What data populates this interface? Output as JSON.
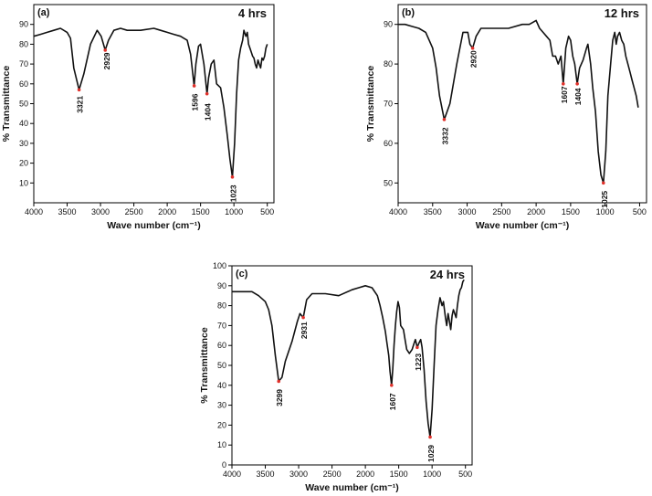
{
  "chart_data": [
    {
      "type": "line",
      "panel_label": "(a)",
      "title": "4 hrs",
      "xlabel": "Wave number (cm⁻¹)",
      "ylabel": "% Transmittance",
      "xlim": [
        4000,
        400
      ],
      "ylim": [
        0,
        100
      ],
      "xticks": [
        4000,
        3500,
        3000,
        2500,
        2000,
        1500,
        1000,
        500
      ],
      "yticks": [
        10,
        20,
        30,
        40,
        50,
        60,
        70,
        80,
        90
      ],
      "marker_color": "#e0302a",
      "annotations": [
        {
          "x": 3321,
          "y": 57,
          "label": "3321"
        },
        {
          "x": 2929,
          "y": 77,
          "label": "2929"
        },
        {
          "x": 1596,
          "y": 59,
          "label": "1596"
        },
        {
          "x": 1404,
          "y": 55,
          "label": "1404"
        },
        {
          "x": 1023,
          "y": 13,
          "label": "1023"
        }
      ],
      "series": [
        {
          "name": "4 hrs",
          "x": [
            4000,
            3900,
            3800,
            3700,
            3600,
            3500,
            3450,
            3400,
            3321,
            3250,
            3150,
            3050,
            2990,
            2929,
            2880,
            2800,
            2700,
            2600,
            2400,
            2200,
            2100,
            2000,
            1900,
            1800,
            1750,
            1700,
            1650,
            1620,
            1596,
            1570,
            1530,
            1500,
            1450,
            1404,
            1380,
            1340,
            1300,
            1260,
            1200,
            1150,
            1100,
            1060,
            1023,
            990,
            960,
            930,
            900,
            870,
            850,
            820,
            800,
            780,
            760,
            740,
            720,
            700,
            680,
            660,
            640,
            620,
            600,
            580,
            560,
            540,
            520,
            500
          ],
          "y": [
            84,
            85,
            86,
            87,
            88,
            86,
            83,
            68,
            57,
            65,
            80,
            87,
            84,
            77,
            82,
            87,
            88,
            87,
            87,
            88,
            87,
            86,
            85,
            84,
            83,
            82,
            75,
            66,
            59,
            70,
            79,
            80,
            70,
            55,
            63,
            70,
            72,
            60,
            58,
            48,
            34,
            22,
            13,
            30,
            55,
            72,
            78,
            82,
            87,
            84,
            86,
            80,
            78,
            76,
            74,
            73,
            70,
            68,
            72,
            70,
            68,
            73,
            72,
            74,
            78,
            80
          ]
        }
      ]
    },
    {
      "type": "line",
      "panel_label": "(b)",
      "title": "12 hrs",
      "xlabel": "Wave number (cm⁻¹)",
      "ylabel": "% Transmittance",
      "xlim": [
        4000,
        400
      ],
      "ylim": [
        45,
        95
      ],
      "xticks": [
        4000,
        3500,
        3000,
        2500,
        2000,
        1500,
        1000,
        500
      ],
      "yticks": [
        50,
        60,
        70,
        80,
        90
      ],
      "marker_color": "#e0302a",
      "annotations": [
        {
          "x": 3332,
          "y": 66,
          "label": "3332"
        },
        {
          "x": 2920,
          "y": 84,
          "label": "2920"
        },
        {
          "x": 1607,
          "y": 75,
          "label": "1607"
        },
        {
          "x": 1404,
          "y": 75,
          "label": "1404"
        },
        {
          "x": 1025,
          "y": 50,
          "label": "1025"
        }
      ],
      "series": [
        {
          "name": "12 hrs",
          "x": [
            4000,
            3900,
            3800,
            3700,
            3600,
            3550,
            3500,
            3450,
            3400,
            3332,
            3250,
            3150,
            3060,
            2990,
            2960,
            2920,
            2870,
            2800,
            2600,
            2400,
            2200,
            2100,
            2000,
            1950,
            1900,
            1850,
            1800,
            1760,
            1720,
            1680,
            1640,
            1607,
            1570,
            1530,
            1500,
            1470,
            1440,
            1404,
            1370,
            1320,
            1270,
            1250,
            1210,
            1180,
            1140,
            1100,
            1060,
            1025,
            990,
            960,
            920,
            890,
            860,
            840,
            820,
            790,
            760,
            730,
            700,
            670,
            640,
            610,
            580,
            550,
            530,
            520
          ],
          "y": [
            90,
            90,
            89.5,
            89,
            88,
            86,
            84,
            79,
            72,
            66,
            70,
            80,
            88,
            88,
            85,
            84,
            87,
            89,
            89,
            89,
            90,
            90,
            91,
            89,
            88,
            87,
            86,
            82,
            82,
            80,
            82,
            75,
            84,
            87,
            86,
            82,
            80,
            75,
            79,
            81,
            84,
            85,
            80,
            74,
            68,
            58,
            52,
            50,
            58,
            72,
            80,
            86,
            88,
            85,
            87,
            88,
            86,
            85,
            82,
            80,
            78,
            76,
            74,
            72,
            70,
            69
          ]
        }
      ]
    },
    {
      "type": "line",
      "panel_label": "(c)",
      "title": "24 hrs",
      "xlabel": "Wave number (cm⁻¹)",
      "ylabel": "% Transmittance",
      "xlim": [
        4000,
        400
      ],
      "ylim": [
        0,
        100
      ],
      "xticks": [
        4000,
        3500,
        3000,
        2500,
        2000,
        1500,
        1000,
        500
      ],
      "yticks": [
        0,
        10,
        20,
        30,
        40,
        50,
        60,
        70,
        80,
        90,
        100
      ],
      "marker_color": "#e0302a",
      "annotations": [
        {
          "x": 3299,
          "y": 42,
          "label": "3299"
        },
        {
          "x": 2931,
          "y": 74,
          "label": "2931"
        },
        {
          "x": 1607,
          "y": 40,
          "label": "1607"
        },
        {
          "x": 1223,
          "y": 59,
          "label": "1223"
        },
        {
          "x": 1029,
          "y": 14,
          "label": "1029"
        }
      ],
      "series": [
        {
          "name": "24 hrs",
          "x": [
            4000,
            3900,
            3800,
            3700,
            3600,
            3500,
            3450,
            3400,
            3350,
            3299,
            3250,
            3200,
            3100,
            3020,
            2980,
            2931,
            2880,
            2800,
            2600,
            2400,
            2200,
            2100,
            2000,
            1900,
            1820,
            1780,
            1740,
            1700,
            1680,
            1650,
            1630,
            1607,
            1590,
            1570,
            1550,
            1530,
            1510,
            1490,
            1470,
            1430,
            1400,
            1380,
            1340,
            1300,
            1270,
            1250,
            1223,
            1200,
            1170,
            1150,
            1120,
            1090,
            1060,
            1029,
            1000,
            970,
            940,
            910,
            880,
            850,
            830,
            800,
            780,
            760,
            740,
            720,
            700,
            680,
            660,
            640,
            620,
            600,
            580,
            560,
            540,
            520
          ],
          "y": [
            87,
            87,
            87,
            87,
            85,
            82,
            78,
            70,
            55,
            42,
            44,
            52,
            62,
            72,
            76,
            74,
            83,
            86,
            86,
            85,
            88,
            89,
            90,
            89,
            85,
            80,
            74,
            67,
            62,
            55,
            47,
            40,
            48,
            60,
            70,
            77,
            82,
            79,
            70,
            68,
            62,
            58,
            56,
            58,
            61,
            63,
            59,
            61,
            63,
            59,
            48,
            32,
            21,
            14,
            28,
            50,
            70,
            78,
            84,
            80,
            82,
            74,
            70,
            76,
            72,
            68,
            75,
            78,
            76,
            74,
            80,
            85,
            88,
            89,
            92,
            93
          ]
        }
      ]
    }
  ]
}
